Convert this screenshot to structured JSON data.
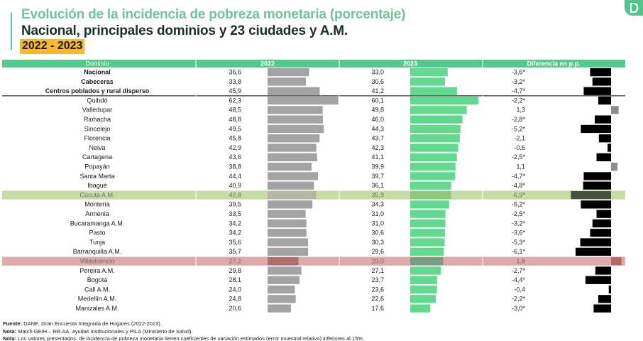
{
  "header": {
    "title": "Evolución de la incidencia de pobreza monetaria (porcentaje)",
    "subtitle": "Nacional, principales dominios y 23 ciudades y A.M.",
    "years": "2022 - 2023"
  },
  "logo": {
    "icon": "dane-logo-icon"
  },
  "colors": {
    "header_green": "#55c88c",
    "bar_2022": "#a3a3a3",
    "bar_2023": "#62d98f",
    "diff_bar": "#000000",
    "highlight_green": "#c6dda6",
    "highlight_red": "#e0aaa8"
  },
  "chart_data": {
    "type": "table",
    "columns": [
      "Dominio",
      "2022",
      "2023",
      "Diferencia en p.p."
    ],
    "rows": [
      {
        "dominio": "Nacional",
        "v2022": 36.6,
        "v2023": 33.0,
        "diff": -3.6,
        "diff_label": "-3,6*",
        "v2022_label": "36,6",
        "v2023_label": "33,0",
        "bold": true
      },
      {
        "dominio": "Cabeceras",
        "v2022": 33.8,
        "v2023": 30.6,
        "diff": -3.2,
        "diff_label": "-3,2*",
        "v2022_label": "33,8",
        "v2023_label": "30,6",
        "bold": true
      },
      {
        "dominio": "Centros poblados y rural disperso",
        "v2022": 45.9,
        "v2023": 41.2,
        "diff": -4.7,
        "diff_label": "-4,7*",
        "v2022_label": "45,9",
        "v2023_label": "41,2",
        "bold": true
      },
      {
        "dominio": "Quibdó",
        "v2022": 62.3,
        "v2023": 60.1,
        "diff": -2.2,
        "diff_label": "-2,2*",
        "v2022_label": "62,3",
        "v2023_label": "60,1"
      },
      {
        "dominio": "Valledupar",
        "v2022": 48.5,
        "v2023": 49.8,
        "diff": 1.3,
        "diff_label": "1,3",
        "v2022_label": "48,5",
        "v2023_label": "49,8"
      },
      {
        "dominio": "Riohacha",
        "v2022": 48.8,
        "v2023": 46.0,
        "diff": -2.8,
        "diff_label": "-2,8*",
        "v2022_label": "48,8",
        "v2023_label": "46,0"
      },
      {
        "dominio": "Sincelejo",
        "v2022": 49.5,
        "v2023": 44.3,
        "diff": -5.2,
        "diff_label": "-5,2*",
        "v2022_label": "49,5",
        "v2023_label": "44,3"
      },
      {
        "dominio": "Florencia",
        "v2022": 45.8,
        "v2023": 43.7,
        "diff": -2.1,
        "diff_label": "-2,1",
        "v2022_label": "45,8",
        "v2023_label": "43,7"
      },
      {
        "dominio": "Neiva",
        "v2022": 42.9,
        "v2023": 42.3,
        "diff": -0.6,
        "diff_label": "-0,6",
        "v2022_label": "42,9",
        "v2023_label": "42,3"
      },
      {
        "dominio": "Cartagena",
        "v2022": 43.6,
        "v2023": 41.1,
        "diff": -2.5,
        "diff_label": "-2,5*",
        "v2022_label": "43,6",
        "v2023_label": "41,1"
      },
      {
        "dominio": "Popayán",
        "v2022": 38.8,
        "v2023": 39.9,
        "diff": 1.1,
        "diff_label": "1,1",
        "v2022_label": "38,8",
        "v2023_label": "39,9"
      },
      {
        "dominio": "Santa Marta",
        "v2022": 44.4,
        "v2023": 39.7,
        "diff": -4.7,
        "diff_label": "-4,7*",
        "v2022_label": "44,4",
        "v2023_label": "39,7"
      },
      {
        "dominio": "Ibagué",
        "v2022": 40.9,
        "v2023": 36.1,
        "diff": -4.8,
        "diff_label": "-4,8*",
        "v2022_label": "40,9",
        "v2023_label": "36,1"
      },
      {
        "dominio": "Cúcuta A.M.",
        "v2022": 42.8,
        "v2023": 35.9,
        "diff": -6.9,
        "diff_label": "-6,9*",
        "v2022_label": "42,8",
        "v2023_label": "35,9",
        "highlight": "green"
      },
      {
        "dominio": "Montería",
        "v2022": 39.5,
        "v2023": 34.3,
        "diff": -5.2,
        "diff_label": "-5,2*",
        "v2022_label": "39,5",
        "v2023_label": "34,3"
      },
      {
        "dominio": "Armenia",
        "v2022": 33.5,
        "v2023": 31.0,
        "diff": -2.5,
        "diff_label": "-2,5*",
        "v2022_label": "33,5",
        "v2023_label": "31,0"
      },
      {
        "dominio": "Bucaramanga A.M.",
        "v2022": 34.2,
        "v2023": 31.0,
        "diff": -3.2,
        "diff_label": "-3,2*",
        "v2022_label": "34,2",
        "v2023_label": "31,0"
      },
      {
        "dominio": "Pasto",
        "v2022": 34.2,
        "v2023": 30.6,
        "diff": -3.6,
        "diff_label": "-3,6*",
        "v2022_label": "34,2",
        "v2023_label": "30,6"
      },
      {
        "dominio": "Tunja",
        "v2022": 35.6,
        "v2023": 30.3,
        "diff": -5.3,
        "diff_label": "-5,3*",
        "v2022_label": "35,6",
        "v2023_label": "30,3"
      },
      {
        "dominio": "Barranquilla A.M.",
        "v2022": 35.7,
        "v2023": 29.6,
        "diff": -6.1,
        "diff_label": "-6,1*",
        "v2022_label": "35,7",
        "v2023_label": "29,6"
      },
      {
        "dominio": "Villavicencio",
        "v2022": 27.2,
        "v2023": 29.0,
        "diff": 1.8,
        "diff_label": "1,8",
        "v2022_label": "27,2",
        "v2023_label": "29,0",
        "highlight": "red"
      },
      {
        "dominio": "Pereira A.M.",
        "v2022": 29.8,
        "v2023": 27.1,
        "diff": -2.7,
        "diff_label": "-2,7*",
        "v2022_label": "29,8",
        "v2023_label": "27,1"
      },
      {
        "dominio": "Bogotá",
        "v2022": 28.1,
        "v2023": 23.7,
        "diff": -4.4,
        "diff_label": "-4,4*",
        "v2022_label": "28,1",
        "v2023_label": "23,7"
      },
      {
        "dominio": "Cali A.M.",
        "v2022": 24.0,
        "v2023": 23.6,
        "diff": -0.4,
        "diff_label": "-0,4",
        "v2022_label": "24,0",
        "v2023_label": "23,6"
      },
      {
        "dominio": "Medellín A.M.",
        "v2022": 24.8,
        "v2023": 22.6,
        "diff": -2.2,
        "diff_label": "-2,2*",
        "v2022_label": "24,8",
        "v2023_label": "22,6"
      },
      {
        "dominio": "Manizales A.M.",
        "v2022": 20.6,
        "v2023": 17.6,
        "diff": -3.0,
        "diff_label": "-3,0*",
        "v2022_label": "20,6",
        "v2023_label": "17,6"
      }
    ]
  },
  "footer": {
    "source_label": "Fuente:",
    "source_text": " DANE. Gran Encuesta Integrada de Hogares (2022-2023).",
    "note1_label": "Nota:",
    "note1_text": " Match GEIH – RR.AA. ayudas institucionales y PILA (Ministerio de Salud).",
    "note2_label": "Nota:",
    "note2_text": " Los valores presentados, de incidencia de pobreza monetaria tienen coeficientes de variación estimados (error muestral relativo) inferiores al 15%."
  }
}
